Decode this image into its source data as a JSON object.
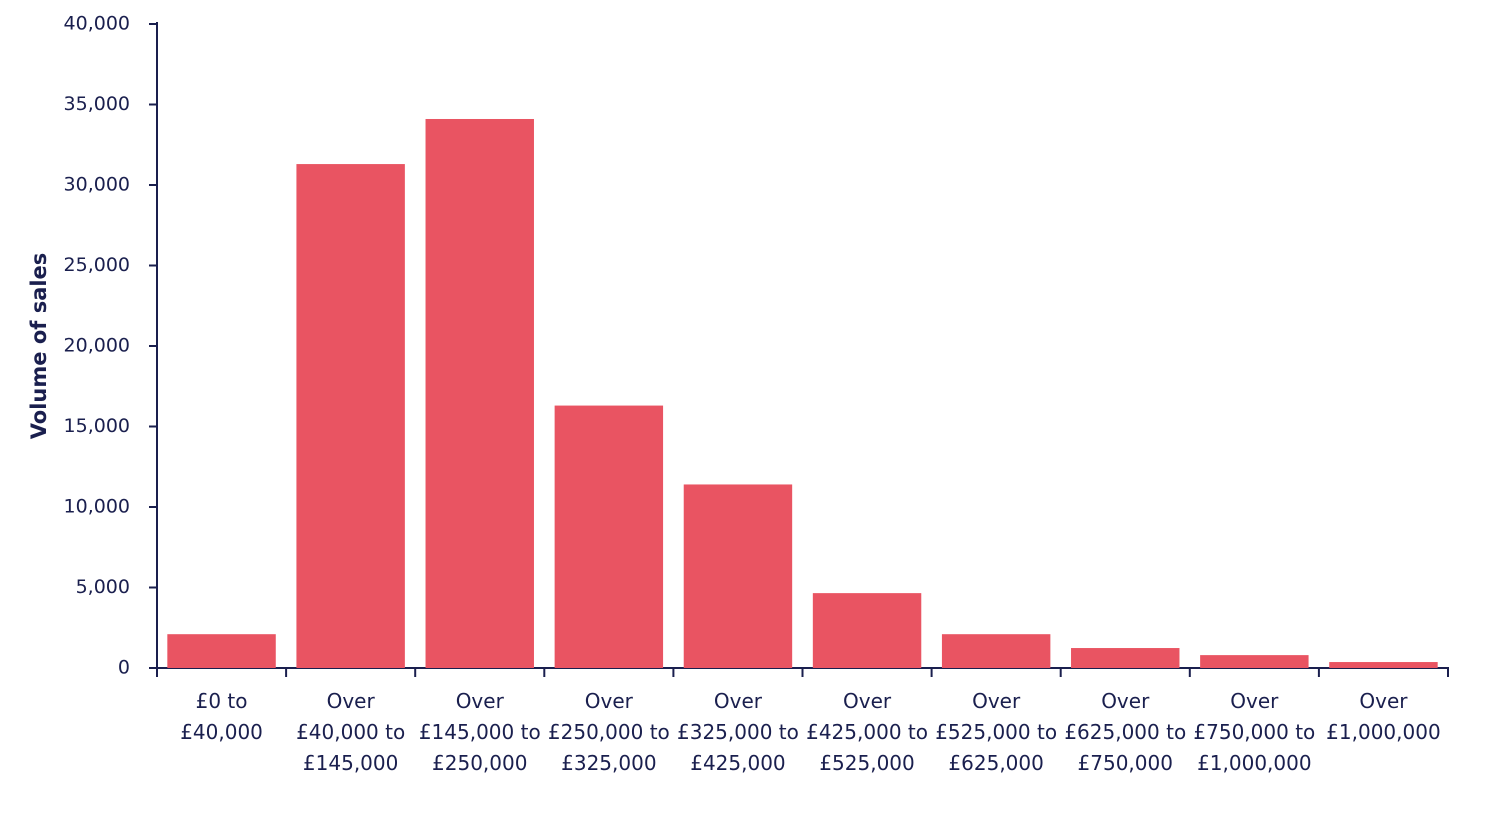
{
  "chart_data": {
    "type": "bar",
    "y_label": "Volume of sales",
    "categories": [
      "£0 to £40,000",
      "Over £40,000 to £145,000",
      "Over £145,000 to £250,000",
      "Over £250,000 to £325,000",
      "Over £325,000 to £425,000",
      "Over £425,000 to £525,000",
      "Over £525,000 to £625,000",
      "Over £625,000 to £750,000",
      "Over £750,000 to £1,000,000",
      "Over £1,000,000"
    ],
    "values": [
      2100,
      31300,
      34100,
      16300,
      11400,
      4650,
      2100,
      1240,
      800,
      370
    ],
    "color": "#e95462",
    "ylim": [
      0,
      40000
    ],
    "yticks": [
      0,
      {
        "value": 5000,
        "label": "5,000"
      },
      {
        "value": 10000,
        "label": "10,000"
      },
      {
        "value": 15000,
        "label": "15,000"
      },
      {
        "value": 20000,
        "label": "20,000"
      },
      {
        "value": 25000,
        "label": "25,000"
      },
      {
        "value": 30000,
        "label": "30,000"
      },
      {
        "value": 35000,
        "label": "35,000"
      },
      {
        "value": 40000,
        "label": "40,000"
      }
    ],
    "grid": false
  }
}
